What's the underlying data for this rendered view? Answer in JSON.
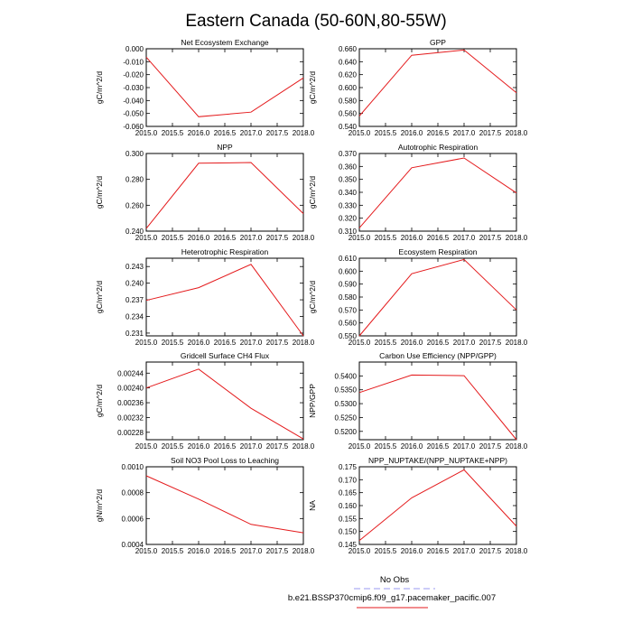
{
  "figure": {
    "title": "Eastern Canada (50-60N,80-55W)"
  },
  "legend": {
    "items": [
      {
        "label": "No Obs",
        "color": "#9a9af0",
        "style": "dashed"
      },
      {
        "label": "b.e21.BSSP370cmip6.f09_g17.pacemaker_pacific.007",
        "color": "#e41a1c",
        "style": "solid"
      }
    ]
  },
  "chart_data": [
    {
      "type": "line",
      "title": "Net Ecosystem Exchange",
      "xlabel": "",
      "ylabel": "gC/m^2/d",
      "xlim": [
        2015.0,
        2018.0
      ],
      "ylim": [
        -0.06,
        0.0
      ],
      "x_ticks": [
        2015.0,
        2015.5,
        2016.0,
        2016.5,
        2017.0,
        2017.5,
        2018.0
      ],
      "x_tick_labels": [
        "2015.0",
        "2015.5",
        "2016.0",
        "2016.5",
        "2017.0",
        "2017.5",
        "2018.0"
      ],
      "y_ticks": [
        0.0,
        -0.01,
        -0.02,
        -0.03,
        -0.04,
        -0.05,
        -0.06
      ],
      "y_tick_labels": [
        "0.000",
        "-0.010",
        "-0.020",
        "-0.030",
        "-0.040",
        "-0.050",
        "-0.060"
      ],
      "color": "#e41a1c",
      "series": [
        {
          "x": [
            2015,
            2016,
            2017,
            2018
          ],
          "y": [
            -0.0065,
            -0.0525,
            -0.049,
            -0.0225
          ]
        }
      ]
    },
    {
      "type": "line",
      "title": "GPP",
      "xlabel": "",
      "ylabel": "gC/m^2/d",
      "xlim": [
        2015.0,
        2018.0
      ],
      "ylim": [
        0.54,
        0.66
      ],
      "x_ticks": [
        2015.0,
        2015.5,
        2016.0,
        2016.5,
        2017.0,
        2017.5,
        2018.0
      ],
      "x_tick_labels": [
        "2015.0",
        "2015.5",
        "2016.0",
        "2016.5",
        "2017.0",
        "2017.5",
        "2018.0"
      ],
      "y_ticks": [
        0.66,
        0.64,
        0.62,
        0.6,
        0.58,
        0.56,
        0.54
      ],
      "y_tick_labels": [
        "0.660",
        "0.640",
        "0.620",
        "0.600",
        "0.580",
        "0.560",
        "0.540"
      ],
      "color": "#e41a1c",
      "series": [
        {
          "x": [
            2015,
            2016,
            2017,
            2018
          ],
          "y": [
            0.556,
            0.65,
            0.658,
            0.592
          ]
        }
      ]
    },
    {
      "type": "line",
      "title": "NPP",
      "xlabel": "",
      "ylabel": "gC/m^2/d",
      "xlim": [
        2015.0,
        2018.0
      ],
      "ylim": [
        0.24,
        0.3
      ],
      "x_ticks": [
        2015.0,
        2015.5,
        2016.0,
        2016.5,
        2017.0,
        2017.5,
        2018.0
      ],
      "x_tick_labels": [
        "2015.0",
        "2015.5",
        "2016.0",
        "2016.5",
        "2017.0",
        "2017.5",
        "2018.0"
      ],
      "y_ticks": [
        0.3,
        0.28,
        0.26,
        0.24
      ],
      "y_tick_labels": [
        "0.300",
        "0.280",
        "0.260",
        "0.240"
      ],
      "color": "#e41a1c",
      "series": [
        {
          "x": [
            2015,
            2016,
            2017,
            2018
          ],
          "y": [
            0.242,
            0.2925,
            0.293,
            0.2535
          ]
        }
      ]
    },
    {
      "type": "line",
      "title": "Autotrophic Respiration",
      "xlabel": "",
      "ylabel": "gC/m^2/d",
      "xlim": [
        2015.0,
        2018.0
      ],
      "ylim": [
        0.31,
        0.37
      ],
      "x_ticks": [
        2015.0,
        2015.5,
        2016.0,
        2016.5,
        2017.0,
        2017.5,
        2018.0
      ],
      "x_tick_labels": [
        "2015.0",
        "2015.5",
        "2016.0",
        "2016.5",
        "2017.0",
        "2017.5",
        "2018.0"
      ],
      "y_ticks": [
        0.37,
        0.36,
        0.35,
        0.34,
        0.33,
        0.32,
        0.31
      ],
      "y_tick_labels": [
        "0.370",
        "0.360",
        "0.350",
        "0.340",
        "0.330",
        "0.320",
        "0.310"
      ],
      "color": "#e41a1c",
      "series": [
        {
          "x": [
            2015,
            2016,
            2017,
            2018
          ],
          "y": [
            0.3125,
            0.359,
            0.3665,
            0.3395
          ]
        }
      ]
    },
    {
      "type": "line",
      "title": "Heterotrophic Respiration",
      "xlabel": "",
      "ylabel": "gC/m^2/d",
      "xlim": [
        2015.0,
        2018.0
      ],
      "ylim": [
        0.2305,
        0.2445
      ],
      "x_ticks": [
        2015.0,
        2015.5,
        2016.0,
        2016.5,
        2017.0,
        2017.5,
        2018.0
      ],
      "x_tick_labels": [
        "2015.0",
        "2015.5",
        "2016.0",
        "2016.5",
        "2017.0",
        "2017.5",
        "2018.0"
      ],
      "y_ticks": [
        0.243,
        0.24,
        0.237,
        0.234,
        0.231
      ],
      "y_tick_labels": [
        "0.243",
        "0.240",
        "0.237",
        "0.234",
        "0.231"
      ],
      "color": "#e41a1c",
      "series": [
        {
          "x": [
            2015,
            2016,
            2017,
            2018
          ],
          "y": [
            0.2369,
            0.2392,
            0.2434,
            0.2305
          ]
        }
      ]
    },
    {
      "type": "line",
      "title": "Ecosystem Respiration",
      "xlabel": "",
      "ylabel": "gC/m^2/d",
      "xlim": [
        2015.0,
        2018.0
      ],
      "ylim": [
        0.55,
        0.61
      ],
      "x_ticks": [
        2015.0,
        2015.5,
        2016.0,
        2016.5,
        2017.0,
        2017.5,
        2018.0
      ],
      "x_tick_labels": [
        "2015.0",
        "2015.5",
        "2016.0",
        "2016.5",
        "2017.0",
        "2017.5",
        "2018.0"
      ],
      "y_ticks": [
        0.61,
        0.6,
        0.59,
        0.58,
        0.57,
        0.56,
        0.55
      ],
      "y_tick_labels": [
        "0.610",
        "0.600",
        "0.590",
        "0.580",
        "0.570",
        "0.560",
        "0.550"
      ],
      "color": "#e41a1c",
      "series": [
        {
          "x": [
            2015,
            2016,
            2017,
            2018
          ],
          "y": [
            0.55,
            0.598,
            0.609,
            0.57
          ]
        }
      ]
    },
    {
      "type": "line",
      "title": "Gridcell Surface CH4 Flux",
      "xlabel": "",
      "ylabel": "gC/m^2/d",
      "xlim": [
        2015.0,
        2018.0
      ],
      "ylim": [
        0.00226,
        0.00247
      ],
      "x_ticks": [
        2015.0,
        2015.5,
        2016.0,
        2016.5,
        2017.0,
        2017.5,
        2018.0
      ],
      "x_tick_labels": [
        "2015.0",
        "2015.5",
        "2016.0",
        "2016.5",
        "2017.0",
        "2017.5",
        "2018.0"
      ],
      "y_ticks": [
        0.00244,
        0.0024,
        0.00236,
        0.00232,
        0.00228
      ],
      "y_tick_labels": [
        "0.00244",
        "0.00240",
        "0.00236",
        "0.00232",
        "0.00228"
      ],
      "color": "#e41a1c",
      "series": [
        {
          "x": [
            2015,
            2016,
            2017,
            2018
          ],
          "y": [
            0.0024,
            0.002451,
            0.002345,
            0.002262
          ]
        }
      ]
    },
    {
      "type": "line",
      "title": "Carbon Use Efficiency (NPP/GPP)",
      "xlabel": "",
      "ylabel": "NPP/GPP",
      "xlim": [
        2015.0,
        2018.0
      ],
      "ylim": [
        0.517,
        0.545
      ],
      "x_ticks": [
        2015.0,
        2015.5,
        2016.0,
        2016.5,
        2017.0,
        2017.5,
        2018.0
      ],
      "x_tick_labels": [
        "2015.0",
        "2015.5",
        "2016.0",
        "2016.5",
        "2017.0",
        "2017.5",
        "2018.0"
      ],
      "y_ticks": [
        0.54,
        0.535,
        0.53,
        0.525,
        0.52
      ],
      "y_tick_labels": [
        "0.5400",
        "0.5350",
        "0.5300",
        "0.5250",
        "0.5200"
      ],
      "color": "#e41a1c",
      "series": [
        {
          "x": [
            2015,
            2016,
            2017,
            2018
          ],
          "y": [
            0.534,
            0.5403,
            0.5401,
            0.517
          ]
        }
      ]
    },
    {
      "type": "line",
      "title": "Soil NO3 Pool Loss to Leaching",
      "xlabel": "",
      "ylabel": "gN/m^2/d",
      "xlim": [
        2015.0,
        2018.0
      ],
      "ylim": [
        0.0004,
        0.001
      ],
      "x_ticks": [
        2015.0,
        2015.5,
        2016.0,
        2016.5,
        2017.0,
        2017.5,
        2018.0
      ],
      "x_tick_labels": [
        "2015.0",
        "2015.5",
        "2016.0",
        "2016.5",
        "2017.0",
        "2017.5",
        "2018.0"
      ],
      "y_ticks": [
        0.001,
        0.0008,
        0.0006,
        0.0004
      ],
      "y_tick_labels": [
        "0.0010",
        "0.0008",
        "0.0006",
        "0.0004"
      ],
      "color": "#e41a1c",
      "series": [
        {
          "x": [
            2015,
            2016,
            2017,
            2018
          ],
          "y": [
            0.00093,
            0.00075,
            0.000555,
            0.00049
          ]
        }
      ]
    },
    {
      "type": "line",
      "title": "NPP_NUPTAKE/(NPP_NUPTAKE+NPP)",
      "xlabel": "",
      "ylabel": "NA",
      "xlim": [
        2015.0,
        2018.0
      ],
      "ylim": [
        0.145,
        0.175
      ],
      "x_ticks": [
        2015.0,
        2015.5,
        2016.0,
        2016.5,
        2017.0,
        2017.5,
        2018.0
      ],
      "x_tick_labels": [
        "2015.0",
        "2015.5",
        "2016.0",
        "2016.5",
        "2017.0",
        "2017.5",
        "2018.0"
      ],
      "y_ticks": [
        0.175,
        0.17,
        0.165,
        0.16,
        0.155,
        0.15,
        0.145
      ],
      "y_tick_labels": [
        "0.175",
        "0.170",
        "0.165",
        "0.160",
        "0.155",
        "0.150",
        "0.145"
      ],
      "color": "#e41a1c",
      "series": [
        {
          "x": [
            2015,
            2016,
            2017,
            2018
          ],
          "y": [
            0.1465,
            0.163,
            0.1738,
            0.152
          ]
        }
      ]
    }
  ]
}
